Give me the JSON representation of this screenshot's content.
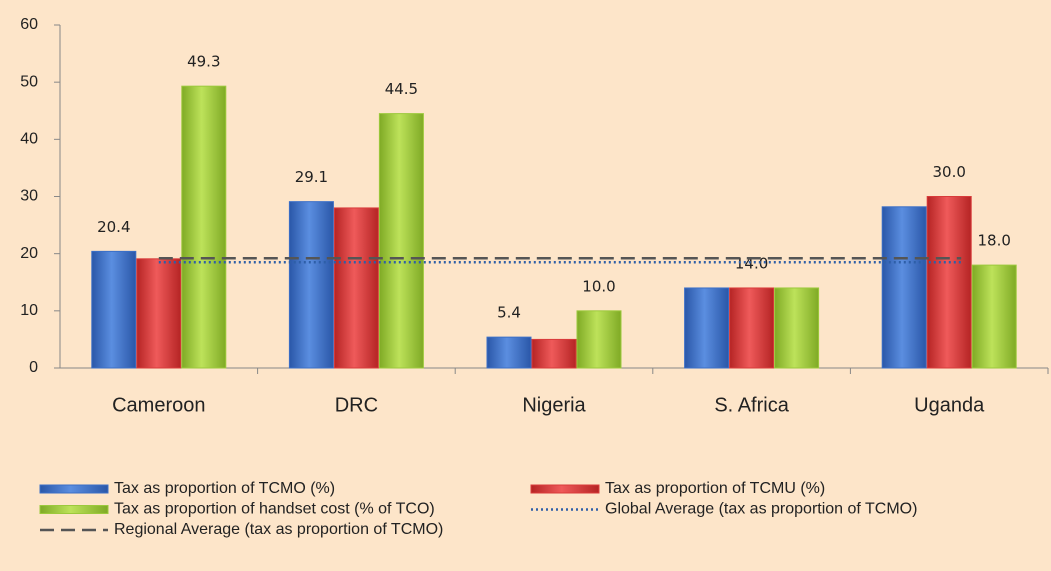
{
  "chart_data": {
    "type": "bar",
    "categories": [
      "Cameroon",
      "DRC",
      "Nigeria",
      "S. Africa",
      "Uganda"
    ],
    "series": [
      {
        "name": "Tax as proportion of TCMO (%)",
        "color": "#3b6fc7",
        "values": [
          20.4,
          29.1,
          5.4,
          14.0,
          28.2
        ],
        "value_labels": [
          "20.4",
          "29.1",
          "5.4",
          null,
          null
        ]
      },
      {
        "name": "Tax as proportion of TCMU (%)",
        "color": "#d93b3b",
        "values": [
          19.1,
          28.0,
          5.0,
          14.0,
          30.0
        ],
        "value_labels": [
          null,
          null,
          null,
          "14.0",
          "30.0"
        ]
      },
      {
        "name": "Tax as proportion of handset cost (% of TCO)",
        "color": "#9cc93c",
        "values": [
          49.3,
          44.5,
          10.0,
          14.0,
          18.0
        ],
        "value_labels": [
          "49.3",
          "44.5",
          "10.0",
          null,
          "18.0"
        ]
      }
    ],
    "lines": [
      {
        "name": "Global Average (tax as proportion of TCMO)",
        "color": "#2e5fa8",
        "style": "dotted",
        "value": 18.5
      },
      {
        "name": "Regional Average (tax as proportion of TCMO)",
        "color": "#555555",
        "style": "dashed",
        "value": 19.2
      }
    ],
    "ylim": [
      0,
      60
    ],
    "yticks": [
      0,
      10,
      20,
      30,
      40,
      50,
      60
    ],
    "grid": false
  }
}
